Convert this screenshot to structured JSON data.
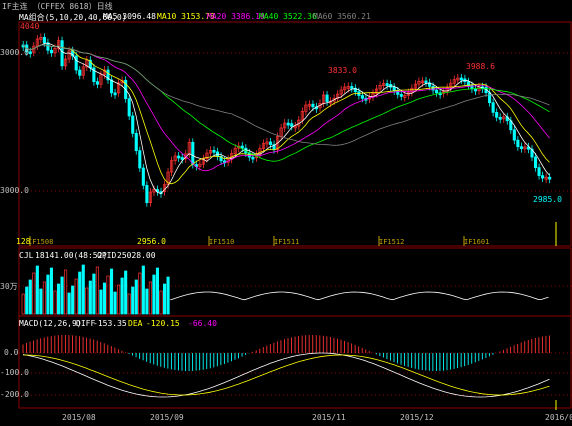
{
  "header": {
    "title": "IF主连 （CFFEX 8618）日线",
    "ma_label": "MA组合(5,10,20,40,60,0)",
    "ma5": "MA5 3096.48",
    "ma10": "MA10 3153.78",
    "ma20": "MA20 3386.10",
    "ma40": "MA40 3522.36",
    "ma60": "MA60 3560.21"
  },
  "price_axis": {
    "upper_tick": "3000.0",
    "lower_tick": "3000.0",
    "left_partial": "0.0"
  },
  "annotations": {
    "peak1": "3833.0",
    "peak2": "3988.6",
    "low1": "2985.0",
    "low2": "2956.0",
    "left_peak": "4040"
  },
  "contract_marks": [
    "IF1508",
    "IF1510",
    "IF1511",
    "IF1512",
    "IF1601"
  ],
  "contract_prefix": "128",
  "volume": {
    "label": "CJL",
    "cjl_value": "18141.00(48:52)",
    "opid_label": "OPID",
    "opid_value": "25028.00",
    "axis_tick": "30万"
  },
  "macd": {
    "label": "MACD(12,26,9)",
    "diff_label": "DIFF",
    "diff_value": "-153.35",
    "dea_label": "DEA",
    "dea_value": "-120.15",
    "macd_value": "-66.40",
    "tick_zero": "0.0",
    "tick_m100": "-100.0",
    "tick_m200": "-200.0"
  },
  "time_axis": [
    "2015/08",
    "2015/09",
    "2015/11",
    "2015/12",
    "2016/01"
  ],
  "colors": {
    "up": "#ff3232",
    "down": "#00ffff",
    "ma5": "#ffffff",
    "ma10": "#ffff00",
    "ma20": "#ff00ff",
    "ma40": "#00ff00",
    "ma60": "#808080",
    "grid": "#8b0000"
  }
}
